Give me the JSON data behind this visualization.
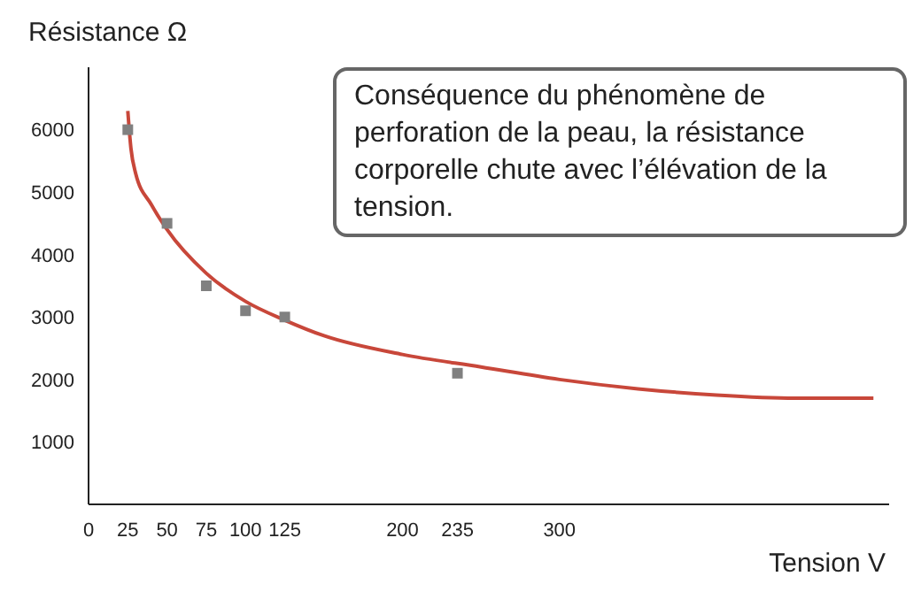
{
  "chart_data": {
    "type": "scatter",
    "xlabel": "Tension V",
    "ylabel": "Résistance Ω",
    "annotations": [
      "Conséquence du phénomène de perforation de la peau, la résistance corporelle chute avec l’élévation de la tension."
    ],
    "xlim": [
      0,
      510
    ],
    "ylim": [
      0,
      7000
    ],
    "xticks": [
      0,
      25,
      50,
      75,
      100,
      125,
      200,
      235,
      300
    ],
    "yticks": [
      1000,
      2000,
      3000,
      4000,
      5000,
      6000
    ],
    "grid": false,
    "legend": false,
    "marker": "square",
    "series": [
      {
        "color": "#808080",
        "x": [
          25,
          50,
          75,
          100,
          125,
          235
        ],
        "values": [
          6000,
          4500,
          3500,
          3100,
          3000,
          2100
        ]
      },
      {
        "type": "line",
        "color": "#c8473a",
        "marker": "none",
        "x": [
          25,
          27,
          30,
          40,
          50,
          75,
          100,
          125,
          150,
          200,
          250,
          300,
          350,
          400,
          450,
          500
        ],
        "values": [
          6300,
          5700,
          5300,
          4800,
          4400,
          3700,
          3250,
          2950,
          2700,
          2400,
          2200,
          2000,
          1850,
          1750,
          1700,
          1700
        ]
      }
    ]
  }
}
